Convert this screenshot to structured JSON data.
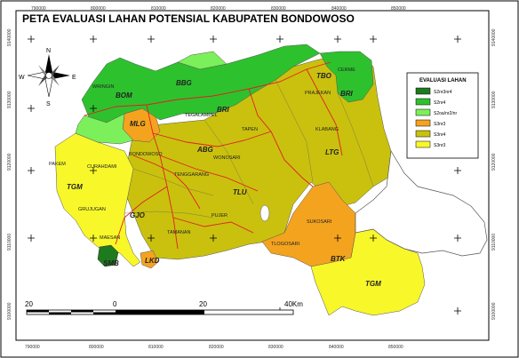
{
  "title": "PETA EVALUASI LAHAN POTENSIAL KABUPATEN BONDOWOSO",
  "compass": {
    "north": "N",
    "south": "S",
    "east": "E",
    "west": "W"
  },
  "coords_top": [
    "790000",
    "800000",
    "810000",
    "820000",
    "830000",
    "840000",
    "850000"
  ],
  "coords_bottom": [
    "790000",
    "800000",
    "810000",
    "820000",
    "830000",
    "840000",
    "850000"
  ],
  "coords_left": [
    "9140000",
    "9130000",
    "9120000",
    "9110000",
    "9100000"
  ],
  "coords_right": [
    "9140000",
    "9130000",
    "9120000",
    "9110000",
    "9100000"
  ],
  "legend": {
    "title": "EVALUASI LAHAN",
    "items": [
      {
        "label": "S2nr3nr4",
        "color": "#1e7a1e"
      },
      {
        "label": "S2nr4",
        "color": "#2ec12e"
      },
      {
        "label": "S2oa/nr2/nr",
        "color": "#7cf05a"
      },
      {
        "label": "S3nr3",
        "color": "#f4a31e"
      },
      {
        "label": "S3nr4",
        "color": "#c9c10e"
      },
      {
        "label": "S3nr3",
        "color": "#f7f72a"
      }
    ]
  },
  "scale": {
    "labels": [
      "20",
      "0",
      "20",
      "40Km"
    ]
  },
  "zone_codes": [
    "BOM",
    "BBG",
    "TBO",
    "BRI",
    "BRI",
    "MLG",
    "ABG",
    "LTG",
    "TGM",
    "TLU",
    "GJO",
    "BTK",
    "TGM",
    "SMB",
    "LKD"
  ],
  "places": [
    "WRINGIN",
    "TEGALAMPEL",
    "TAPEN",
    "PRAJEKAN",
    "CERME",
    "KLABANG",
    "BONDOWOSO",
    "WONOSARI",
    "TENGGARANG",
    "PAKEM",
    "CURAHDAMI",
    "GRUJUGAN",
    "PUJER",
    "MAESAN",
    "TAMANAN",
    "SUKOSARI",
    "TLOGOSARI"
  ]
}
